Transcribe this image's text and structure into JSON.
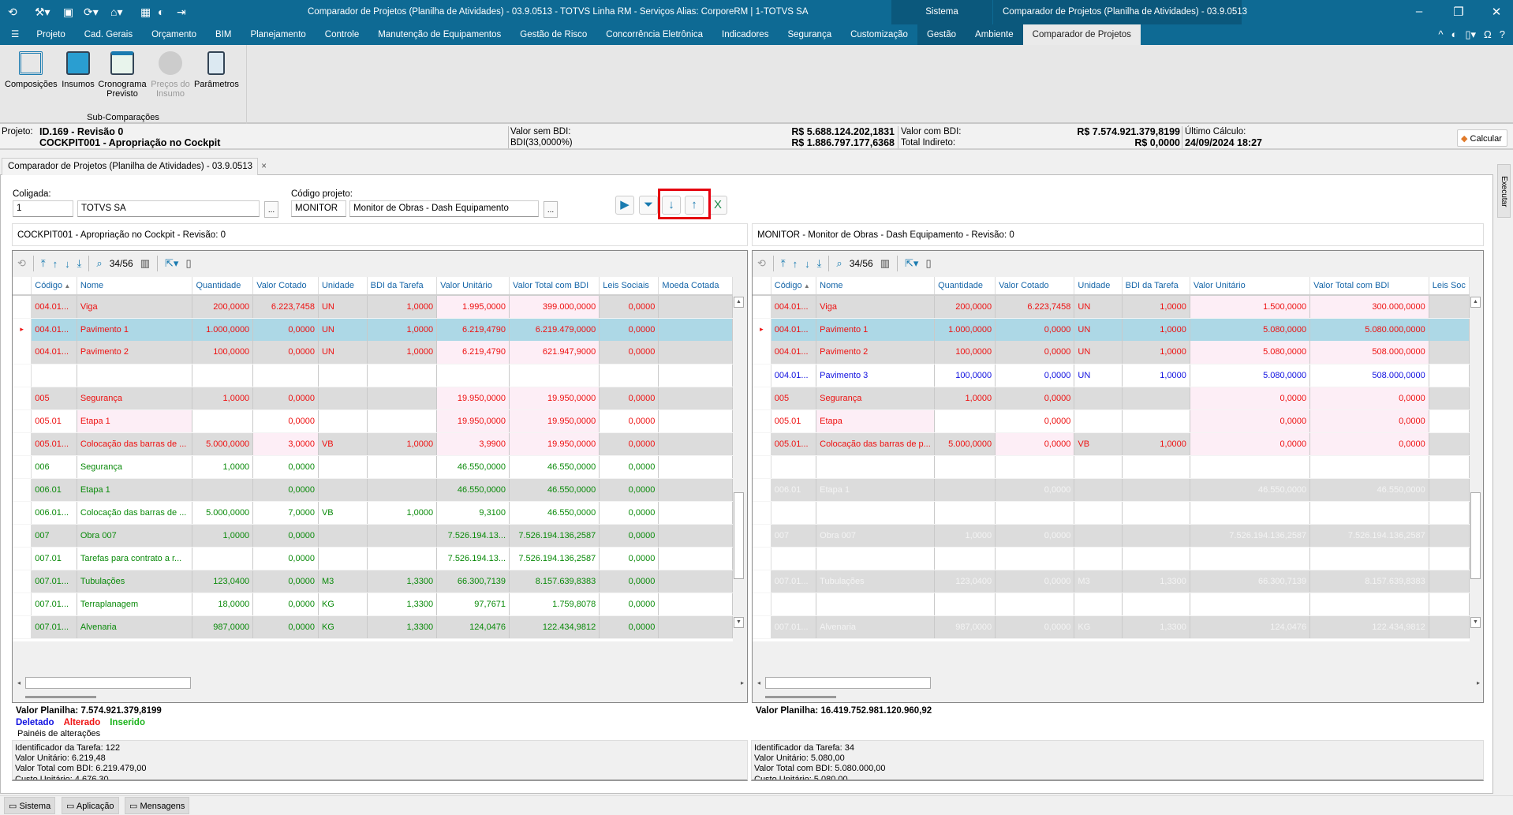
{
  "titlebar": {
    "title": "Comparador de Projetos (Planilha de Atividades) - 03.9.0513 - TOTVS Linha RM - Serviços  Alias: CorporeRM | 1-TOTVS SA",
    "context_tab": "Sistema",
    "context_title": "Comparador de Projetos (Planilha de Atividades) - 03.9.0513"
  },
  "menu": [
    "Projeto",
    "Cad. Gerais",
    "Orçamento",
    "BIM",
    "Planejamento",
    "Controle",
    "Manutenção de Equipamentos",
    "Gestão de Risco",
    "Concorrência Eletrônica",
    "Indicadores",
    "Segurança",
    "Customização",
    "Gestão",
    "Ambiente",
    "Comparador de Projetos"
  ],
  "ribbon": {
    "buttons": [
      {
        "label": "Composições",
        "icon": "grid-icon",
        "disabled": false
      },
      {
        "label": "Insumos",
        "icon": "box-icon",
        "disabled": false
      },
      {
        "label": "Cronograma Previsto",
        "icon": "calendar-clock-icon",
        "disabled": false
      },
      {
        "label": "Preços do Insumo",
        "icon": "price-icon",
        "disabled": true
      },
      {
        "label": "Parâmetros",
        "icon": "document-icon",
        "disabled": false
      }
    ],
    "group": "Sub-Comparações"
  },
  "info": {
    "projeto_label": "Projeto:",
    "projeto_id": "ID.169 - Revisão 0",
    "projeto_nome": "COCKPIT001 - Apropriação no Cockpit",
    "valor_sem_bdi_label": "Valor sem BDI:",
    "bdi_label": "BDI(33,0000%)",
    "valor_sem_bdi": "R$ 5.688.124.202,1831",
    "bdi_valor": "R$ 1.886.797.177,6368",
    "valor_com_bdi_label": "Valor com BDI:",
    "total_indireto_label": "Total Indireto:",
    "valor_com_bdi": "R$ 7.574.921.379,8199",
    "total_indireto": "R$ 0,0000",
    "ultimo_calculo_label": "Último Cálculo:",
    "ultimo_calculo": "24/09/2024 18:27",
    "calcular": "Calcular"
  },
  "doc_tab": "Comparador de Projetos (Planilha de Atividades) - 03.9.0513",
  "exec_tab": "Executar",
  "form": {
    "coligada_label": "Coligada:",
    "coligada_code": "1",
    "coligada_name": "TOTVS SA",
    "projeto_label": "Código projeto:",
    "projeto_code": "MONITOR",
    "projeto_name": "Monitor de Obras - Dash Equipamento",
    "dots": "..."
  },
  "columns_left": [
    "Código",
    "Nome",
    "Quantidade",
    "Valor Cotado",
    "Unidade",
    "BDI da Tarefa",
    "Valor Unitário",
    "Valor Total com BDI",
    "Leis Sociais",
    "Moeda Cotada"
  ],
  "columns_right": [
    "Código",
    "Nome",
    "Quantidade",
    "Valor Cotado",
    "Unidade",
    "BDI da Tarefa",
    "Valor Unitário",
    "Valor Total com BDI",
    "Leis Soc"
  ],
  "left": {
    "header": "COCKPIT001 - Apropriação no Cockpit - Revisão: 0",
    "counter": "34/56",
    "valor_planilha": "Valor Planilha: 7.574.921.379,8199",
    "rows": [
      {
        "status": "alterado",
        "pink": [
          6,
          7
        ],
        "cells": [
          "004.01...",
          "Viga",
          "200,0000",
          "6.223,7458",
          "UN",
          "1,0000",
          "1.995,0000",
          "399.000,0000",
          "0,0000",
          ""
        ]
      },
      {
        "status": "alterado",
        "selected": true,
        "pink": [],
        "cells": [
          "004.01...",
          "Pavimento 1",
          "1.000,0000",
          "0,0000",
          "UN",
          "1,0000",
          "6.219,4790",
          "6.219.479,0000",
          "0,0000",
          ""
        ]
      },
      {
        "status": "alterado",
        "pink": [
          6,
          7
        ],
        "cells": [
          "004.01...",
          "Pavimento 2",
          "100,0000",
          "0,0000",
          "UN",
          "1,0000",
          "6.219,4790",
          "621.947,9000",
          "0,0000",
          ""
        ]
      },
      {
        "status": "",
        "pink": [],
        "cells": [
          "",
          "",
          "",
          "",
          "",
          "",
          "",
          "",
          "",
          ""
        ]
      },
      {
        "status": "alterado",
        "pink": [
          6,
          7
        ],
        "cells": [
          "005",
          "Segurança",
          "1,0000",
          "0,0000",
          "",
          "",
          "19.950,0000",
          "19.950,0000",
          "0,0000",
          ""
        ]
      },
      {
        "status": "alterado",
        "pink": [
          1,
          6,
          7
        ],
        "cells": [
          "005.01",
          "Etapa 1",
          "",
          "0,0000",
          "",
          "",
          "19.950,0000",
          "19.950,0000",
          "0,0000",
          ""
        ]
      },
      {
        "status": "alterado",
        "pink": [
          3,
          6,
          7
        ],
        "cells": [
          "005.01...",
          "Colocação das barras de ...",
          "5.000,0000",
          "3,0000",
          "VB",
          "1,0000",
          "3,9900",
          "19.950,0000",
          "0,0000",
          ""
        ]
      },
      {
        "status": "inserido",
        "pink": [],
        "cells": [
          "006",
          "Segurança",
          "1,0000",
          "0,0000",
          "",
          "",
          "46.550,0000",
          "46.550,0000",
          "0,0000",
          ""
        ]
      },
      {
        "status": "inserido",
        "pink": [],
        "cells": [
          "006.01",
          "Etapa 1",
          "",
          "0,0000",
          "",
          "",
          "46.550,0000",
          "46.550,0000",
          "0,0000",
          ""
        ]
      },
      {
        "status": "inserido",
        "pink": [],
        "cells": [
          "006.01...",
          "Colocação das barras de ...",
          "5.000,0000",
          "7,0000",
          "VB",
          "1,0000",
          "9,3100",
          "46.550,0000",
          "0,0000",
          ""
        ]
      },
      {
        "status": "inserido",
        "pink": [],
        "cells": [
          "007",
          "Obra 007",
          "1,0000",
          "0,0000",
          "",
          "",
          "7.526.194.13...",
          "7.526.194.136,2587",
          "0,0000",
          ""
        ]
      },
      {
        "status": "inserido",
        "pink": [],
        "cells": [
          "007.01",
          "Tarefas para contrato a r...",
          "",
          "0,0000",
          "",
          "",
          "7.526.194.13...",
          "7.526.194.136,2587",
          "0,0000",
          ""
        ]
      },
      {
        "status": "inserido",
        "pink": [],
        "cells": [
          "007.01...",
          "Tubulações",
          "123,0400",
          "0,0000",
          "M3",
          "1,3300",
          "66.300,7139",
          "8.157.639,8383",
          "0,0000",
          ""
        ]
      },
      {
        "status": "inserido",
        "pink": [],
        "cells": [
          "007.01...",
          "Terraplanagem",
          "18,0000",
          "0,0000",
          "KG",
          "1,3300",
          "97,7671",
          "1.759,8078",
          "0,0000",
          ""
        ]
      },
      {
        "status": "inserido",
        "pink": [],
        "cells": [
          "007.01...",
          "Alvenaria",
          "987,0000",
          "0,0000",
          "KG",
          "1,3300",
          "124,0476",
          "122.434,9812",
          "0,0000",
          ""
        ]
      }
    ],
    "details": [
      "Identificador da Tarefa: 122",
      "Valor Unitário: 6.219,48",
      "Valor Total com BDI: 6.219.479,00",
      "Custo Unitário: 4.676,30"
    ]
  },
  "right": {
    "header": "MONITOR - Monitor de Obras - Dash Equipamento - Revisão: 0",
    "counter": "34/56",
    "valor_planilha": "Valor Planilha: 16.419.752.981.120.960,92",
    "rows": [
      {
        "status": "alterado",
        "pink": [
          6,
          7
        ],
        "cells": [
          "004.01...",
          "Viga",
          "200,0000",
          "6.223,7458",
          "UN",
          "1,0000",
          "1.500,0000",
          "300.000,0000",
          ""
        ]
      },
      {
        "status": "alterado",
        "selected": true,
        "pink": [],
        "cells": [
          "004.01...",
          "Pavimento 1",
          "1.000,0000",
          "0,0000",
          "UN",
          "1,0000",
          "5.080,0000",
          "5.080.000,0000",
          ""
        ]
      },
      {
        "status": "alterado",
        "pink": [
          6,
          7
        ],
        "cells": [
          "004.01...",
          "Pavimento 2",
          "100,0000",
          "0,0000",
          "UN",
          "1,0000",
          "5.080,0000",
          "508.000,0000",
          ""
        ]
      },
      {
        "status": "deletado",
        "pink": [],
        "cells": [
          "004.01...",
          "Pavimento 3",
          "100,0000",
          "0,0000",
          "UN",
          "1,0000",
          "5.080,0000",
          "508.000,0000",
          ""
        ]
      },
      {
        "status": "alterado",
        "pink": [
          6,
          7
        ],
        "cells": [
          "005",
          "Segurança",
          "1,0000",
          "0,0000",
          "",
          "",
          "0,0000",
          "0,0000",
          ""
        ]
      },
      {
        "status": "alterado",
        "pink": [
          1,
          6,
          7
        ],
        "cells": [
          "005.01",
          "Etapa",
          "",
          "0,0000",
          "",
          "",
          "0,0000",
          "0,0000",
          ""
        ]
      },
      {
        "status": "alterado",
        "pink": [
          3,
          6,
          7
        ],
        "cells": [
          "005.01...",
          "Colocação das barras de p...",
          "5.000,0000",
          "0,0000",
          "VB",
          "1,0000",
          "0,0000",
          "0,0000",
          ""
        ]
      },
      {
        "status": "",
        "pink": [],
        "cells": [
          "",
          "",
          "",
          "",
          "",
          "",
          "",
          "",
          ""
        ]
      },
      {
        "status": "ghost",
        "pink": [],
        "cells": [
          "006.01",
          "Etapa 1",
          "",
          "0,0000",
          "",
          "",
          "46.550,0000",
          "46.550,0000",
          ""
        ]
      },
      {
        "status": "",
        "pink": [],
        "cells": [
          "",
          "",
          "",
          "",
          "",
          "",
          "",
          "",
          ""
        ]
      },
      {
        "status": "ghost",
        "pink": [],
        "cells": [
          "007",
          "Obra 007",
          "1,0000",
          "0,0000",
          "",
          "",
          "7.526.194.136,2587",
          "7.526.194.136,2587",
          ""
        ]
      },
      {
        "status": "",
        "pink": [],
        "cells": [
          "",
          "",
          "",
          "",
          "",
          "",
          "",
          "",
          ""
        ]
      },
      {
        "status": "ghost",
        "pink": [],
        "cells": [
          "007.01...",
          "Tubulações",
          "123,0400",
          "0,0000",
          "M3",
          "1,3300",
          "66.300,7139",
          "8.157.639,8383",
          ""
        ]
      },
      {
        "status": "",
        "pink": [],
        "cells": [
          "",
          "",
          "",
          "",
          "",
          "",
          "",
          "",
          ""
        ]
      },
      {
        "status": "ghost",
        "pink": [],
        "cells": [
          "007.01...",
          "Alvenaria",
          "987,0000",
          "0,0000",
          "KG",
          "1,3300",
          "124,0476",
          "122.434,9812",
          ""
        ]
      }
    ],
    "details": [
      "Identificador da Tarefa: 34",
      "Valor Unitário: 5.080,00",
      "Valor Total com BDI: 5.080.000,00",
      "Custo Unitário: 5.080,00"
    ]
  },
  "legend": {
    "deletado": "Deletado",
    "alterado": "Alterado",
    "inserido": "Inserido"
  },
  "paineis_label": "Painéis de alterações",
  "statusbar": [
    "Sistema",
    "Aplicação",
    "Mensagens"
  ],
  "colors": {
    "titlebar": "#0e6a94",
    "alterado": "#ee1111",
    "inserido": "#0a8a0a",
    "deletado": "#1010e0",
    "selected": "#add8e6",
    "changed_cell": "#fdeef6",
    "highlight": "#e5000f"
  }
}
